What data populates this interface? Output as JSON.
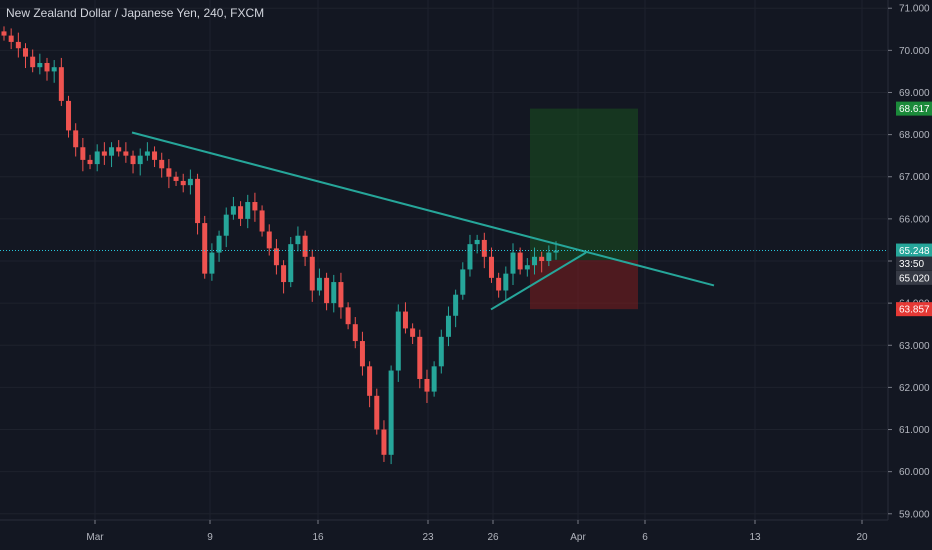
{
  "title": "New Zealand Dollar / Japanese Yen, 240, FXCM",
  "colors": {
    "background": "#131722",
    "grid": "#1e222d",
    "up": "#26a69a",
    "down": "#ef5350",
    "trendline": "#26a69a",
    "profit_zone": "#1b5e20",
    "loss_zone": "#7f1d1d",
    "price_line": "#26c6da",
    "axis_text": "#b2b5be"
  },
  "price_tags": [
    {
      "label": "68.617",
      "color": "#1b8a3a"
    },
    {
      "label": "65.248",
      "color": "#26a69a"
    },
    {
      "label": "33:50",
      "color": "#2a2e39"
    },
    {
      "label": "65.020",
      "color": "#363a45"
    },
    {
      "label": "63.857",
      "color": "#e53935"
    }
  ],
  "chart_data": {
    "type": "candlestick",
    "title": "New Zealand Dollar / Japanese Yen, 240, FXCM",
    "ylim": [
      58.9,
      71.1
    ],
    "y_ticks": [
      "71.000",
      "70.000",
      "69.000",
      "68.000",
      "67.000",
      "66.000",
      "65.000",
      "64.000",
      "63.000",
      "62.000",
      "61.000",
      "60.000",
      "59.000"
    ],
    "x_tick_labels": [
      "Mar",
      "9",
      "16",
      "23",
      "26",
      "Apr",
      "6",
      "13",
      "20"
    ],
    "grid": true,
    "last_price": 65.248,
    "position": {
      "target": 68.617,
      "entry": 65.02,
      "stop": 63.857
    },
    "price_series": [
      70.35,
      70.2,
      70.05,
      69.85,
      69.6,
      69.7,
      69.5,
      69.6,
      68.8,
      68.1,
      67.7,
      67.4,
      67.3,
      67.6,
      67.5,
      67.7,
      67.6,
      67.5,
      67.3,
      67.5,
      67.6,
      67.4,
      67.2,
      67.0,
      66.9,
      66.8,
      66.95,
      65.9,
      64.7,
      65.2,
      65.6,
      66.1,
      66.3,
      66.0,
      66.4,
      66.2,
      65.7,
      65.3,
      64.9,
      64.5,
      65.4,
      65.6,
      65.1,
      64.3,
      64.6,
      64.0,
      64.5,
      63.9,
      63.5,
      63.1,
      62.5,
      61.8,
      61.0,
      60.4,
      62.4,
      63.8,
      63.4,
      63.2,
      62.2,
      61.9,
      62.5,
      63.2,
      63.7,
      64.2,
      64.8,
      65.4,
      65.5,
      65.1,
      64.6,
      64.3,
      64.7,
      65.2,
      64.8,
      64.9,
      65.1,
      65.0,
      65.2,
      65.248
    ]
  }
}
